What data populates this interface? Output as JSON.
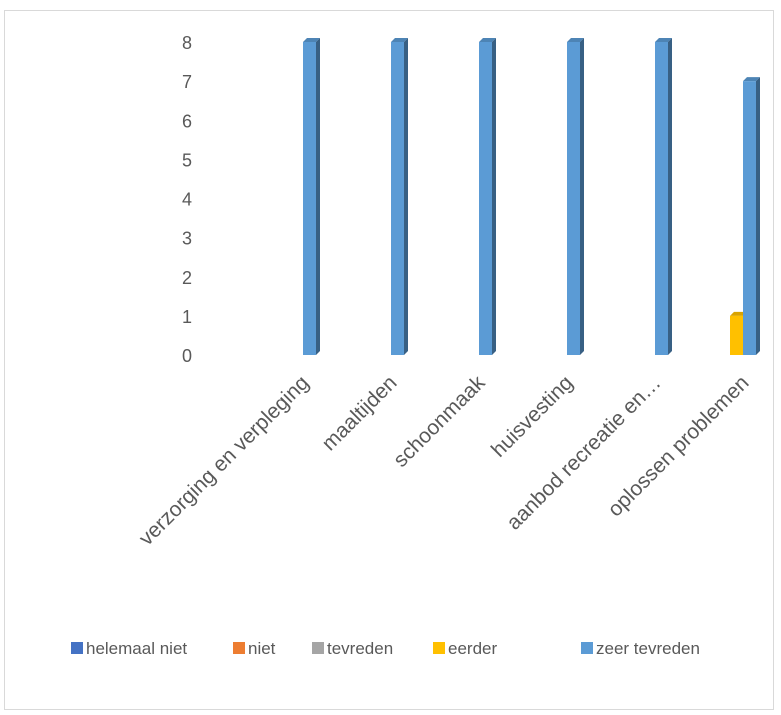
{
  "chart_data": {
    "type": "bar",
    "title": "",
    "xlabel": "",
    "ylabel": "",
    "ylim": [
      0,
      8
    ],
    "yticks": [
      "0",
      "1",
      "2",
      "3",
      "4",
      "5",
      "6",
      "7",
      "8"
    ],
    "grid": false,
    "legend_position": "bottom",
    "categories": [
      "verzorging en verpleging",
      "maaltijden",
      "schoonmaak",
      "huisvesting",
      "aanbod recreatie en…",
      "oplossen problemen"
    ],
    "series": [
      {
        "name": "helemaal niet",
        "color": "#4472c4",
        "values": [
          0,
          0,
          0,
          0,
          0,
          0
        ]
      },
      {
        "name": "niet",
        "color": "#ed7d31",
        "values": [
          0,
          0,
          0,
          0,
          0,
          0
        ]
      },
      {
        "name": "tevreden",
        "color": "#a5a5a5",
        "values": [
          0,
          0,
          0,
          0,
          0,
          0
        ]
      },
      {
        "name": "eerder",
        "color": "#ffc000",
        "values": [
          0,
          0,
          0,
          0,
          0,
          1
        ]
      },
      {
        "name": "zeer tevreden",
        "color": "#5b9bd5",
        "values": [
          8,
          8,
          8,
          8,
          8,
          7
        ]
      }
    ]
  }
}
